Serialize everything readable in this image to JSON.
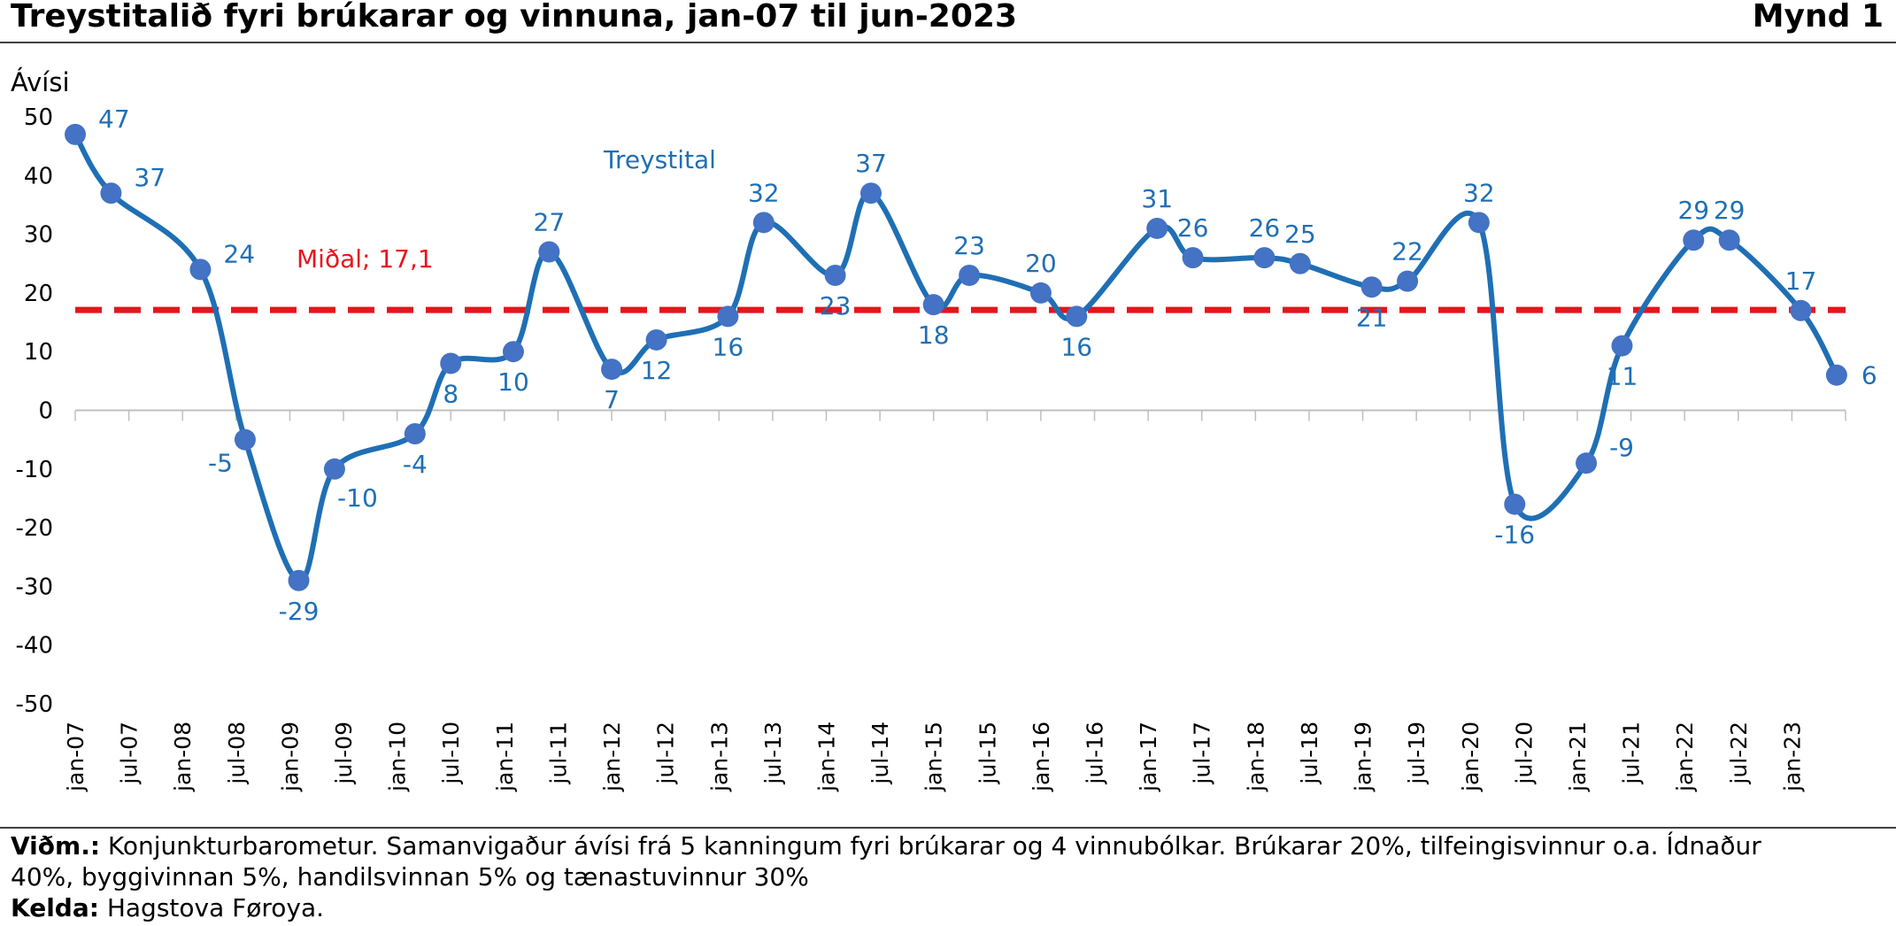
{
  "header": {
    "title": "Treystitalið fyri brúkarar og vinnuna, jan-07 til jun-2023",
    "figure_label": "Mynd 1"
  },
  "footer": {
    "note_label": "Viðm.:",
    "note_line1": " Konjunkturbarometur. Samanvigaður ávísi frá 5 kanningum fyri brúkarar og 4 vinnubólkar. Brúkarar 20%, tilfeingisvinnur o.a. Ídnaður",
    "note_line2": "40%, byggivinnan 5%, handilsvinnan 5% og tænastuvinnur 30%",
    "source_label": "Kelda:",
    "source_text": " Hagstova Føroya."
  },
  "colors": {
    "series": "#1f6fb4",
    "markers": "#4472c4",
    "average": "#e8141b",
    "axis": "#bfbfbf"
  },
  "chart_data": {
    "type": "line",
    "title": "Treystitalið fyri brúkarar og vinnuna, jan-07 til jun-2023",
    "ylabel": "Ávísi",
    "xlabel": "",
    "ylim": [
      -50,
      50
    ],
    "yticks": [
      50,
      40,
      30,
      20,
      10,
      0,
      -10,
      -20,
      -30,
      -40,
      -50
    ],
    "grid": false,
    "categories": [
      "jan-07",
      "jul-07",
      "jan-08",
      "jul-08",
      "jan-09",
      "jul-09",
      "jan-10",
      "jul-10",
      "jan-11",
      "jul-11",
      "jan-12",
      "jul-12",
      "jan-13",
      "jul-13",
      "jan-14",
      "jul-14",
      "jan-15",
      "jul-15",
      "jan-16",
      "jul-16",
      "jan-17",
      "jul-17",
      "jan-18",
      "jul-18",
      "jan-19",
      "jul-19",
      "jan-20",
      "jul-20",
      "jan-21",
      "jul-21",
      "jan-22",
      "jul-22",
      "jan-23"
    ],
    "series": [
      {
        "name": "Treystital",
        "x": [
          "2007-01",
          "2007-05",
          "2008-03",
          "2008-08",
          "2009-02",
          "2009-06",
          "2010-03",
          "2010-07",
          "2011-02",
          "2011-06",
          "2012-01",
          "2012-06",
          "2013-02",
          "2013-06",
          "2014-02",
          "2014-06",
          "2015-01",
          "2015-05",
          "2016-01",
          "2016-05",
          "2017-02",
          "2017-06",
          "2018-02",
          "2018-06",
          "2019-02",
          "2019-06",
          "2020-02",
          "2020-06",
          "2021-02",
          "2021-06",
          "2022-02",
          "2022-06",
          "2023-02",
          "2023-06"
        ],
        "values": [
          47,
          37,
          24,
          -5,
          -29,
          -10,
          -4,
          8,
          10,
          27,
          7,
          12,
          16,
          32,
          23,
          37,
          18,
          23,
          20,
          16,
          31,
          26,
          26,
          25,
          21,
          22,
          32,
          -16,
          -9,
          11,
          29,
          29,
          17,
          6
        ]
      },
      {
        "name": "Miðal; 17,1",
        "value": 17.1
      }
    ]
  }
}
